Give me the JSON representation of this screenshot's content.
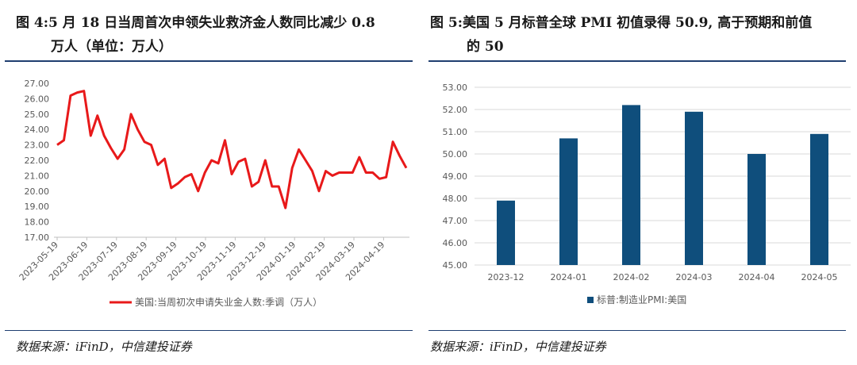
{
  "left": {
    "title_line1": "图  4:5 月 18 日当周首次申领失业救济金人数同比减少 0.8",
    "title_line2": "万人（单位：万人）",
    "source": "数据来源：iFinD，中信建投证券"
  },
  "right": {
    "title_line1": "图  5:美国 5 月标普全球 PMI 初值录得 50.9, 高于预期和前值",
    "title_line2": "的 50",
    "source": "数据来源：iFinD，中信建投证券"
  },
  "colors": {
    "line": "#e8191a",
    "bar": "#0f4e7c",
    "rule": "#1f3e70",
    "grid": "#d9d9d9",
    "axis_text": "#595959"
  },
  "chart_data": [
    {
      "type": "line",
      "yticks": [
        "27.00",
        "26.00",
        "25.00",
        "24.00",
        "23.00",
        "22.00",
        "21.00",
        "20.00",
        "19.00",
        "18.00",
        "17.00"
      ],
      "ylim": [
        17,
        27
      ],
      "xticks": [
        "2023-05-19",
        "2023-06-19",
        "2023-07-19",
        "2023-08-19",
        "2023-09-19",
        "2023-10-19",
        "2023-11-19",
        "2023-12-19",
        "2024-01-19",
        "2024-02-19",
        "2024-03-19",
        "2024-04-19"
      ],
      "series": [
        {
          "name": "美国:当周初次申请失业金人数:季调（万人）",
          "values": [
            23.0,
            23.3,
            26.2,
            26.4,
            26.5,
            23.6,
            24.9,
            23.6,
            22.8,
            22.1,
            22.7,
            25.0,
            24.0,
            23.2,
            23.0,
            21.7,
            22.1,
            20.2,
            20.5,
            20.9,
            21.1,
            20.0,
            21.2,
            22.0,
            21.8,
            23.3,
            21.1,
            21.9,
            22.1,
            20.3,
            20.6,
            22.0,
            20.3,
            20.3,
            18.9,
            21.5,
            22.7,
            22.0,
            21.3,
            20.0,
            21.3,
            21.0,
            21.2,
            21.2,
            21.2,
            22.2,
            21.2,
            21.2,
            20.8,
            20.9,
            23.2,
            22.3,
            21.5
          ]
        }
      ]
    },
    {
      "type": "bar",
      "categories": [
        "2023-12",
        "2024-01",
        "2024-02",
        "2024-03",
        "2024-04",
        "2024-05"
      ],
      "yticks": [
        "53.00",
        "52.00",
        "51.00",
        "50.00",
        "49.00",
        "48.00",
        "47.00",
        "46.00",
        "45.00"
      ],
      "ylim": [
        45,
        53
      ],
      "series": [
        {
          "name": "标普:制造业PMI:美国",
          "values": [
            47.9,
            50.7,
            52.2,
            51.9,
            50.0,
            50.9
          ]
        }
      ]
    }
  ]
}
